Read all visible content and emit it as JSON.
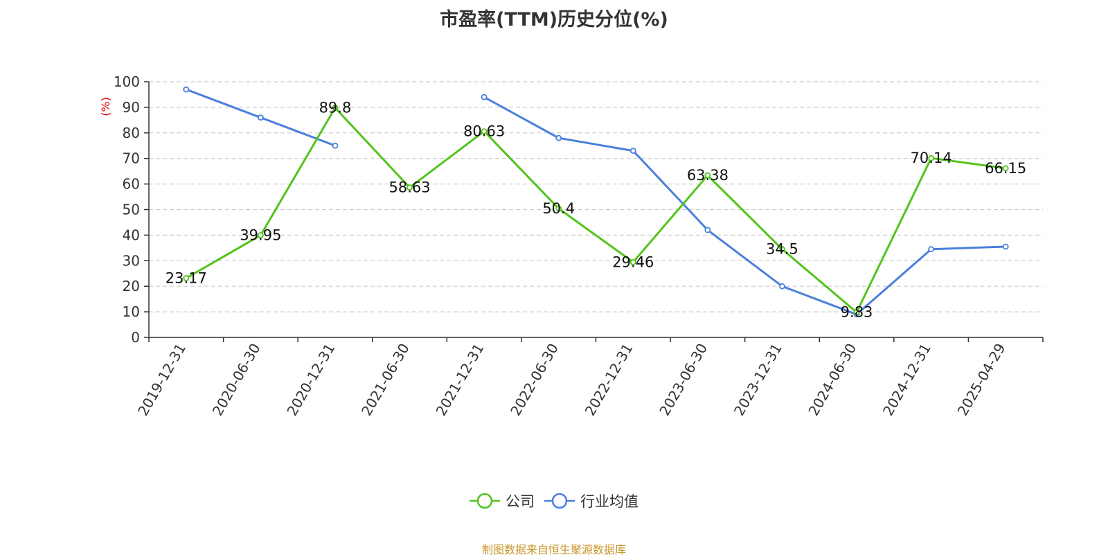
{
  "chart_data": {
    "type": "line",
    "title": "市盈率(TTM)历史分位(%)",
    "ylabel": "(%)",
    "xlabel": "",
    "ylim": [
      0,
      100
    ],
    "yticks": [
      0,
      10,
      20,
      30,
      40,
      50,
      60,
      70,
      80,
      90,
      100
    ],
    "grid": true,
    "legend_position": "bottom",
    "categories": [
      "2019-12-31",
      "2020-06-30",
      "2020-12-31",
      "2021-06-30",
      "2021-12-31",
      "2022-06-30",
      "2022-12-31",
      "2023-06-30",
      "2023-12-31",
      "2024-06-30",
      "2024-12-31",
      "2025-04-29"
    ],
    "series": [
      {
        "name": "公司",
        "color": "#52c41a",
        "values": [
          23.17,
          39.95,
          89.8,
          58.63,
          80.63,
          50.4,
          29.46,
          63.38,
          34.5,
          9.83,
          70.14,
          66.15
        ],
        "labels": [
          "23.17",
          "39.95",
          "89.8",
          "58.63",
          "80.63",
          "50.4",
          "29.46",
          "63.38",
          "34.5",
          "9.83",
          "70.14",
          "66.15"
        ]
      },
      {
        "name": "行业均值",
        "color": "#4a7fdc",
        "values": [
          97,
          86,
          75,
          null,
          94,
          78,
          73,
          42,
          20,
          9,
          34.5,
          35.5
        ]
      }
    ]
  },
  "footer": {
    "source": "制图数据来自恒生聚源数据库"
  }
}
